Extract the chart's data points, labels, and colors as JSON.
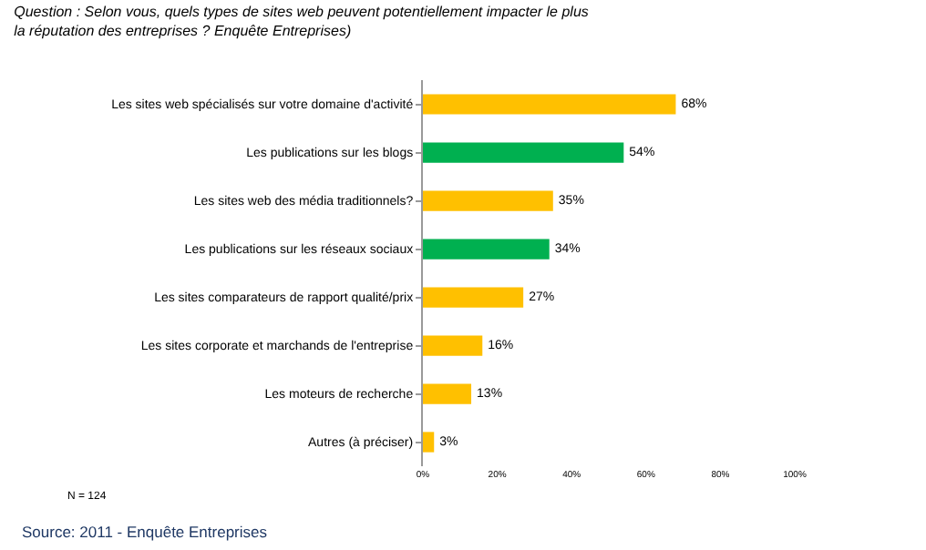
{
  "chart_data": {
    "type": "bar",
    "orientation": "horizontal",
    "title": "Question : Selon vous, quels types de sites web peuvent potentiellement impacter le plus la réputation des entreprises ? Enquête Entreprises)",
    "categories": [
      "Les sites web spécialisés sur votre domaine d'activité",
      "Les publications sur les blogs",
      "Les sites web des média traditionnels?",
      "Les publications sur les réseaux sociaux",
      "Les sites comparateurs de rapport qualité/prix",
      "Les sites corporate et marchands de l'entreprise",
      "Les moteurs de recherche",
      "Autres (à préciser)"
    ],
    "values": [
      68,
      54,
      35,
      34,
      27,
      16,
      13,
      3
    ],
    "colors": [
      "#ffc000",
      "#00b050",
      "#ffc000",
      "#00b050",
      "#ffc000",
      "#ffc000",
      "#ffc000",
      "#ffc000"
    ],
    "value_labels": [
      "68%",
      "54%",
      "35%",
      "34%",
      "27%",
      "16%",
      "13%",
      "3%"
    ],
    "xlim": [
      0,
      100
    ],
    "xticks": [
      {
        "value": 0,
        "label": "0%"
      },
      {
        "value": 20,
        "label": "20%"
      },
      {
        "value": 40,
        "label": "40%"
      },
      {
        "value": 60,
        "label": "60%"
      },
      {
        "value": 80,
        "label": "80%"
      },
      {
        "value": 100,
        "label": "100%"
      }
    ],
    "grid": false,
    "annotations": [
      "N = 124",
      "Source: 2011 - Enquête Entreprises"
    ]
  }
}
